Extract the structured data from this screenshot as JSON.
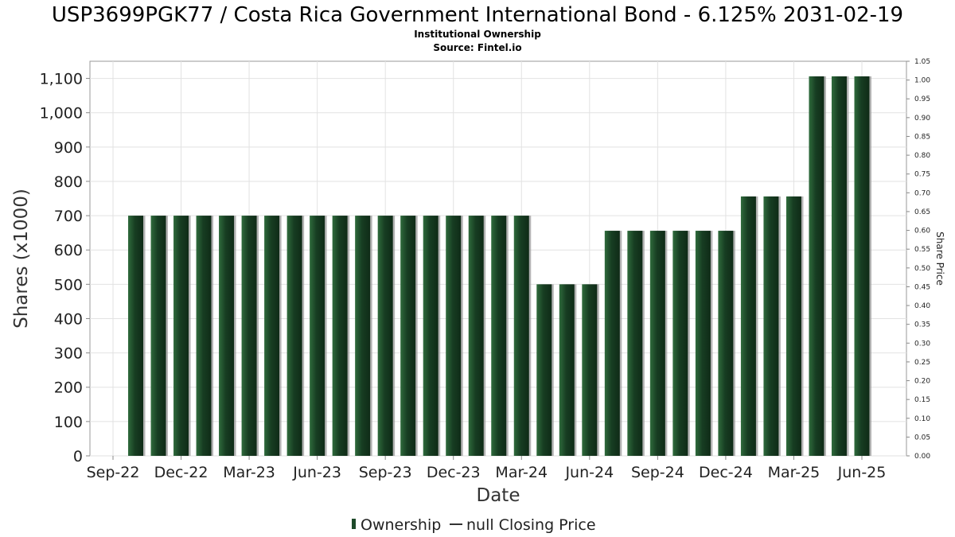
{
  "chart_data": {
    "type": "bar",
    "title": "USP3699PGK77 / Costa Rica Government International Bond - 6.125% 2031-02-19",
    "subtitle_lines": [
      "Institutional Ownership",
      "Source: Fintel.io"
    ],
    "xlabel": "Date",
    "ylabel": "Shares (x1000)",
    "y2label": "Share Price",
    "ylim": [
      0,
      1150
    ],
    "y2lim": [
      0,
      1.05
    ],
    "yticks": [
      "0",
      "100",
      "200",
      "300",
      "400",
      "500",
      "600",
      "700",
      "800",
      "900",
      "1,000",
      "1,100"
    ],
    "y2ticks": [
      "0.00",
      "0.05",
      "0.10",
      "0.15",
      "0.20",
      "0.25",
      "0.30",
      "0.35",
      "0.40",
      "0.45",
      "0.50",
      "0.55",
      "0.60",
      "0.65",
      "0.70",
      "0.75",
      "0.80",
      "0.85",
      "0.90",
      "0.95",
      "1.00",
      "1.05"
    ],
    "xticks": [
      "Sep-22",
      "Dec-22",
      "Mar-23",
      "Jun-23",
      "Sep-23",
      "Dec-23",
      "Mar-24",
      "Jun-24",
      "Sep-24",
      "Dec-24",
      "Mar-25",
      "Jun-25"
    ],
    "grid": true,
    "legend_position": "bottom",
    "series": [
      {
        "name": "Ownership",
        "color": "#1e4a2a",
        "values": [
          700,
          700,
          700,
          700,
          700,
          700,
          700,
          700,
          700,
          700,
          700,
          700,
          700,
          700,
          700,
          700,
          700,
          700,
          500,
          500,
          500,
          656,
          656,
          656,
          656,
          656,
          656,
          756,
          756,
          756,
          1106,
          1106,
          1106
        ]
      }
    ],
    "legend": [
      {
        "name": "Ownership",
        "marker": "bar"
      },
      {
        "name": "null Closing Price",
        "marker": "line"
      }
    ]
  }
}
